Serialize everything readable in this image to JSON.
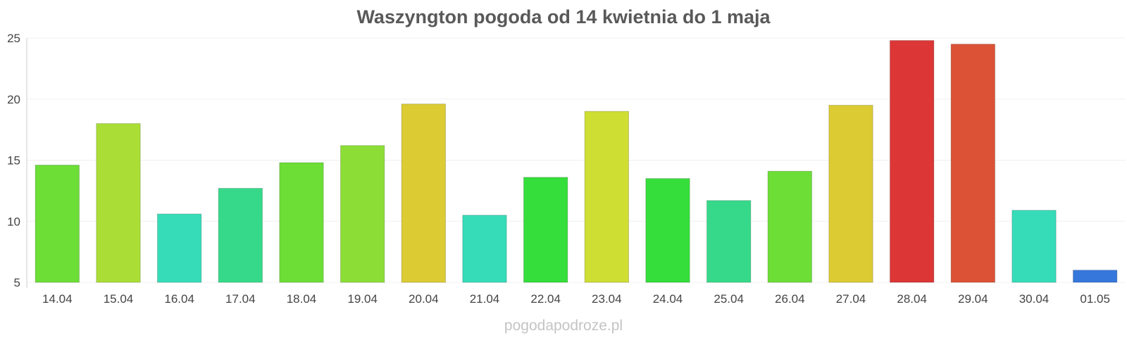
{
  "chart_data": {
    "type": "bar",
    "title": "Waszyngton pogoda od 14 kwietnia do 1 maja",
    "xlabel": "",
    "ylabel": "",
    "categories": [
      "14.04",
      "15.04",
      "16.04",
      "17.04",
      "18.04",
      "19.04",
      "20.04",
      "21.04",
      "22.04",
      "23.04",
      "24.04",
      "25.04",
      "26.04",
      "27.04",
      "28.04",
      "29.04",
      "30.04",
      "01.05"
    ],
    "values": [
      14.6,
      18.0,
      10.6,
      12.7,
      14.8,
      16.2,
      19.6,
      10.5,
      13.6,
      19.0,
      13.5,
      11.7,
      14.1,
      19.5,
      24.8,
      24.5,
      10.9,
      6.0
    ],
    "colors": [
      "#6cde36",
      "#aade36",
      "#36dcb8",
      "#36d98a",
      "#6cde36",
      "#8cde36",
      "#dccb33",
      "#36dcb8",
      "#36de3b",
      "#cede33",
      "#36de3b",
      "#36d98a",
      "#6cde36",
      "#dccb33",
      "#dc3636",
      "#dc5236",
      "#36dcb8",
      "#3677dc"
    ],
    "ylim": [
      5,
      25
    ],
    "yticks": [
      5,
      10,
      15,
      20,
      25
    ],
    "grid": true,
    "legend": "none"
  },
  "watermark": "pogodapodroze.pl"
}
